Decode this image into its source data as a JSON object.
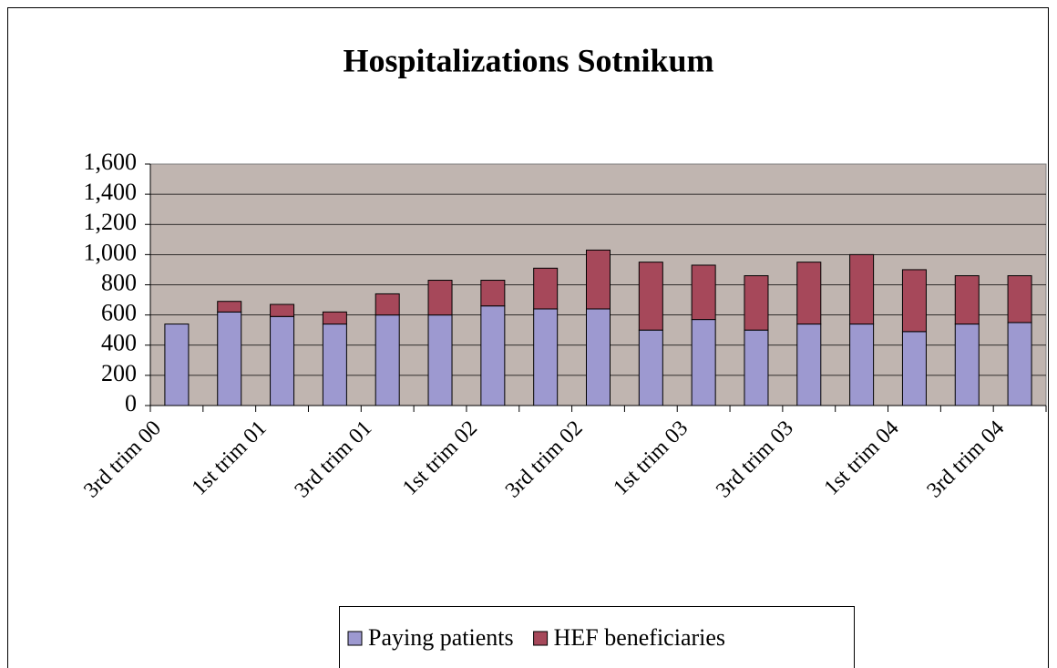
{
  "chart_data": {
    "type": "stacked_bar",
    "title": "Hospitalizations Sotnikum",
    "categories": [
      "3rd trim 00",
      null,
      "1st trim 01",
      null,
      "3rd trim 01",
      null,
      "1st trim 02",
      null,
      "3rd trim 02",
      null,
      "1st trim 03",
      null,
      "3rd trim 03",
      null,
      "1st trim 04",
      null,
      "3rd trim 04"
    ],
    "series": [
      {
        "name": "Paying patients",
        "color": "#9d99d0",
        "values": [
          540,
          620,
          590,
          540,
          600,
          600,
          660,
          640,
          640,
          500,
          570,
          500,
          540,
          540,
          490,
          540,
          550
        ]
      },
      {
        "name": "HEF beneficiaries",
        "color": "#a6485a",
        "values": [
          0,
          70,
          80,
          80,
          140,
          230,
          170,
          270,
          390,
          450,
          360,
          360,
          410,
          460,
          410,
          320,
          310
        ]
      }
    ],
    "ylim": [
      0,
      1600
    ],
    "yticks": [
      0,
      200,
      400,
      600,
      800,
      {
        "value": 1000,
        "label": "1,000"
      },
      {
        "value": 1200,
        "label": "1,200"
      },
      {
        "value": 1400,
        "label": "1,400"
      },
      {
        "value": 1600,
        "label": "1,600"
      }
    ],
    "grid": true,
    "legend": "bottom"
  }
}
